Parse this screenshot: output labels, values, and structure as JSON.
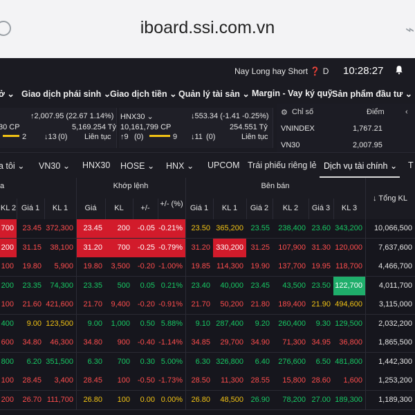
{
  "browser": {
    "url": "iboard.ssi.com.vn"
  },
  "topbar": {
    "ticker": "Nay Long hay Short",
    "question": "❓",
    "initial": "D",
    "time": "10:28:27"
  },
  "menu": [
    {
      "label": "ở ⌄"
    },
    {
      "label": "Giao dịch phái sinh ⌄"
    },
    {
      "label": "Giao dịch tiền ⌄"
    },
    {
      "label": "Quản lý tài sản ⌄"
    },
    {
      "label": "Margin - Vay ký quỹ"
    },
    {
      "label": "Sản phẩm đầu tư ⌄"
    }
  ],
  "index_cards": [
    {
      "name": "",
      "change": "↑2,007.95 (22.67 1.14%)",
      "volume": "30 CP",
      "value": "5,169.254 Tỷ",
      "up": "2",
      "down": "↓13",
      "ref": "(0)",
      "session": "Liên tục"
    },
    {
      "name": "HNX30 ⌄",
      "change": "↓553.34 (-1.41 -0.25%)",
      "volume": "10,161,799 CP",
      "value": "254.551 Tỷ",
      "up": "↑9",
      "ref": "(0)",
      "flat": "9",
      "down": "↓11",
      "ref2": "(0)",
      "session": "Liên tục"
    }
  ],
  "mini_table": {
    "header_left": "Chỉ số",
    "header_right": "Điểm",
    "rows": [
      {
        "name": "VNINDEX",
        "value": "1,767.21"
      },
      {
        "name": "VN30",
        "value": "2,007.95"
      }
    ]
  },
  "tabs": [
    "a tôi ⌄",
    "VN30 ⌄",
    "HNX30",
    "HOSE ⌄",
    "HNX ⌄",
    "UPCOM",
    "Trái phiếu riêng lẻ",
    "Dịch vụ tài chính ⌄",
    "T"
  ],
  "grid": {
    "group_buy": "a",
    "group_match": "Khớp lệnh",
    "group_sell": "Bên bán",
    "total_label": "↓ Tổng KL",
    "headers": [
      "KL 2",
      "Giá 1",
      "KL 1",
      "Giá",
      "KL",
      "+/-",
      "+/- (%)",
      "Giá 1",
      "KL 1",
      "Giá 2",
      "KL 2",
      "Giá 3",
      "KL 3"
    ],
    "rows": [
      [
        "700",
        "23.45",
        "372,300",
        "23.45",
        "200",
        "-0.05",
        "-0.21%",
        "23.50",
        "365,200",
        "23.55",
        "238,400",
        "23.60",
        "343,200",
        "10,066,500"
      ],
      [
        "200",
        "31.15",
        "38,100",
        "31.20",
        "700",
        "-0.25",
        "-0.79%",
        "31.20",
        "330,200",
        "31.25",
        "107,900",
        "31.30",
        "120,000",
        "7,637,600"
      ],
      [
        "100",
        "19.80",
        "5,900",
        "19.80",
        "3,500",
        "-0.20",
        "-1.00%",
        "19.85",
        "114,300",
        "19.90",
        "137,700",
        "19.95",
        "118,700",
        "4,466,700"
      ],
      [
        "200",
        "23.35",
        "74,300",
        "23.35",
        "500",
        "0.05",
        "0.21%",
        "23.40",
        "40,000",
        "23.45",
        "43,500",
        "23.50",
        "122,700",
        "4,011,700"
      ],
      [
        "100",
        "21.60",
        "421,600",
        "21.70",
        "9,400",
        "-0.20",
        "-0.91%",
        "21.70",
        "50,200",
        "21.80",
        "189,400",
        "21.90",
        "494,600",
        "3,115,000"
      ],
      [
        "400",
        "9.00",
        "123,500",
        "9.00",
        "1,000",
        "0.50",
        "5.88%",
        "9.10",
        "287,400",
        "9.20",
        "260,400",
        "9.30",
        "129,500",
        "2,032,200"
      ],
      [
        "600",
        "34.80",
        "46,300",
        "34.80",
        "900",
        "-0.40",
        "-1.14%",
        "34.85",
        "29,700",
        "34.90",
        "71,300",
        "34.95",
        "36,800",
        "1,865,500"
      ],
      [
        "800",
        "6.20",
        "351,500",
        "6.30",
        "700",
        "0.30",
        "5.00%",
        "6.30",
        "326,800",
        "6.40",
        "276,600",
        "6.50",
        "481,800",
        "1,442,300"
      ],
      [
        "100",
        "28.45",
        "3,400",
        "28.45",
        "100",
        "-0.50",
        "-1.73%",
        "28.50",
        "11,300",
        "28.55",
        "15,800",
        "28.60",
        "1,600",
        "1,253,200"
      ],
      [
        "200",
        "26.70",
        "111,700",
        "26.80",
        "100",
        "0.00",
        "0.00%",
        "26.80",
        "48,500",
        "26.90",
        "78,200",
        "27.00",
        "189,300",
        "1,189,300"
      ]
    ],
    "colors": [
      [
        "down",
        "down",
        "down",
        "down",
        "down",
        "down",
        "down",
        "ref",
        "ref",
        "up",
        "up",
        "up",
        "up",
        "white"
      ],
      [
        "down",
        "down",
        "down",
        "down",
        "down",
        "down",
        "down",
        "down",
        "down",
        "down",
        "down",
        "down",
        "down",
        "white"
      ],
      [
        "down",
        "down",
        "down",
        "down",
        "down",
        "down",
        "down",
        "down",
        "down",
        "down",
        "down",
        "down",
        "down",
        "white"
      ],
      [
        "up",
        "up",
        "up",
        "up",
        "up",
        "up",
        "up",
        "up",
        "up",
        "up",
        "up",
        "up",
        "up",
        "white"
      ],
      [
        "down",
        "down",
        "down",
        "down",
        "down",
        "down",
        "down",
        "down",
        "down",
        "down",
        "down",
        "ref",
        "ref",
        "white"
      ],
      [
        "up",
        "ref",
        "ref",
        "up",
        "up",
        "up",
        "up",
        "up",
        "up",
        "up",
        "up",
        "up",
        "up",
        "white"
      ],
      [
        "down",
        "down",
        "down",
        "down",
        "down",
        "down",
        "down",
        "down",
        "down",
        "down",
        "down",
        "down",
        "down",
        "white"
      ],
      [
        "up",
        "up",
        "up",
        "up",
        "up",
        "up",
        "up",
        "up",
        "up",
        "up",
        "up",
        "up",
        "up",
        "white"
      ],
      [
        "down",
        "down",
        "down",
        "down",
        "down",
        "down",
        "down",
        "down",
        "down",
        "down",
        "down",
        "down",
        "down",
        "white"
      ],
      [
        "down",
        "down",
        "down",
        "ref",
        "ref",
        "ref",
        "ref",
        "ref",
        "ref",
        "up",
        "up",
        "up",
        "up",
        "white"
      ]
    ],
    "highlights": [
      {
        "row": 1,
        "col": 0,
        "bg": "red"
      },
      {
        "row": 1,
        "col": 3,
        "bg": "red"
      },
      {
        "row": 1,
        "col": 4,
        "bg": "red"
      },
      {
        "row": 1,
        "col": 5,
        "bg": "red"
      },
      {
        "row": 1,
        "col": 6,
        "bg": "red"
      },
      {
        "row": 1,
        "col": 8,
        "bg": "red"
      },
      {
        "row": 0,
        "col": 0,
        "bg": "red"
      },
      {
        "row": 0,
        "col": 3,
        "bg": "red"
      },
      {
        "row": 0,
        "col": 4,
        "bg": "red"
      },
      {
        "row": 0,
        "col": 5,
        "bg": "red"
      },
      {
        "row": 0,
        "col": 6,
        "bg": "red"
      },
      {
        "row": 3,
        "col": 12,
        "bg": "green"
      }
    ]
  }
}
